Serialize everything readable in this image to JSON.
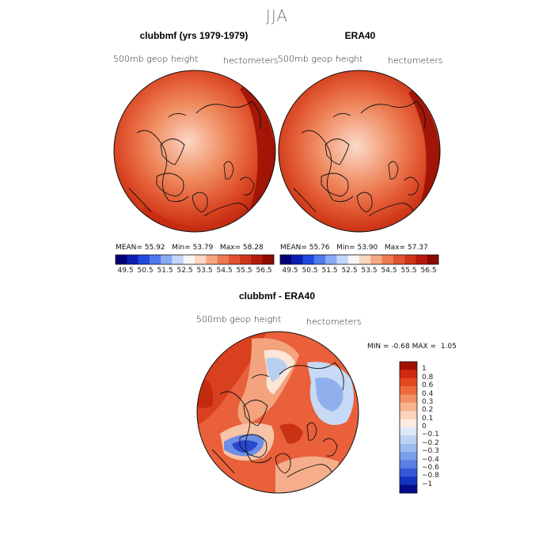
{
  "figure": {
    "season": "JJA",
    "panels": [
      {
        "title": "clubbmf (yrs 1979-1979)",
        "field": "500mb geop height",
        "units": "hectometers",
        "stats": {
          "mean_label": "MEAN=",
          "mean": "55.92",
          "min_label": "Min=",
          "min": "53.79",
          "max_label": "Max=",
          "max": "58.28"
        }
      },
      {
        "title": "ERA40",
        "field": "500mb geop height",
        "units": "hectometers",
        "stats": {
          "mean_label": "MEAN=",
          "mean": "55.76",
          "min_label": "Min=",
          "min": "53.90",
          "max_label": "Max=",
          "max": "57.37"
        }
      }
    ],
    "horiz_colorbar": {
      "labels": [
        "49.5",
        "50.5",
        "51.5",
        "52.5",
        "53.5",
        "54.5",
        "55.5",
        "56.5"
      ],
      "colors": [
        "#00007a",
        "#0a1fb0",
        "#1f49dc",
        "#4f79ec",
        "#88a9f4",
        "#c4d7fa",
        "#f5f5f5",
        "#fbd6c0",
        "#f5a883",
        "#ee7a52",
        "#e2532f",
        "#d0351a",
        "#b51a0c",
        "#8c0a00"
      ]
    },
    "diff_panel": {
      "title": "clubbmf - ERA40",
      "field": "500mb geop height",
      "units": "hectometers",
      "stats": {
        "min_label": "MIN =",
        "min": "-0.68",
        "max_label": "MAX =",
        "max": "1.05"
      },
      "colorbar": {
        "labels": [
          "1",
          "0.8",
          "0.6",
          "0.4",
          "0.3",
          "0.2",
          "0.1",
          "0",
          "−0.1",
          "−0.2",
          "−0.3",
          "−0.4",
          "−0.6",
          "−0.8",
          "−1"
        ],
        "colors": [
          "#a01005",
          "#d02a10",
          "#e44820",
          "#ee6a3c",
          "#f38f62",
          "#f7b38e",
          "#fad3bb",
          "#fcebdf",
          "#dce8f7",
          "#bcd3f2",
          "#9bbaee",
          "#7a9eea",
          "#5a80e4",
          "#3358d8",
          "#1433c0",
          "#040c8c"
        ]
      }
    },
    "colors": {
      "ocean_deep": "#b01a08",
      "land_outline": "#111111"
    }
  }
}
